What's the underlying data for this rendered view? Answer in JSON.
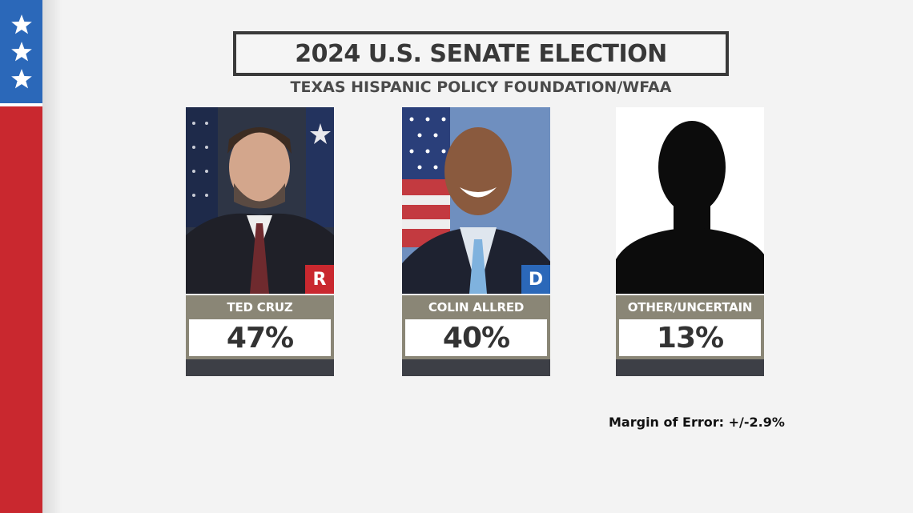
{
  "header": {
    "title": "2024 U.S. SENATE ELECTION",
    "subtitle": "TEXAS HISPANIC POLICY FOUNDATION/WFAA"
  },
  "candidates": [
    {
      "name": "TED CRUZ",
      "percent": "47%",
      "party": "R",
      "party_color": "#c9282f"
    },
    {
      "name": "COLIN ALLRED",
      "percent": "40%",
      "party": "D",
      "party_color": "#2b68b9"
    },
    {
      "name": "OTHER/UNCERTAIN",
      "percent": "13%",
      "party": "",
      "party_color": ""
    }
  ],
  "footer": {
    "margin_of_error": "Margin of Error: +/-2.9%"
  },
  "colors": {
    "flag_blue": "#2b68b9",
    "flag_red": "#c9282f",
    "name_bar": "#8a8676",
    "bottom_bar": "#3d3f46"
  }
}
